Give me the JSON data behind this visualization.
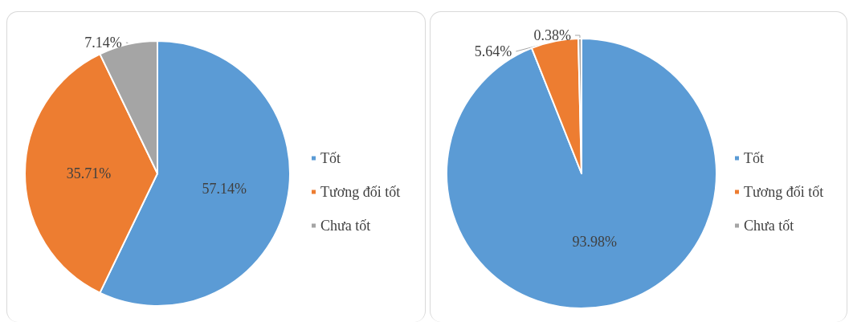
{
  "chart_data": [
    {
      "type": "pie",
      "categories": [
        "Tốt",
        "Tương đối tốt",
        "Chưa tốt"
      ],
      "values": [
        57.14,
        35.71,
        7.14
      ],
      "colors": [
        "#5b9bd5",
        "#ed7d31",
        "#a5a5a5"
      ],
      "value_labels": [
        "57.14%",
        "35.71%",
        "7.14%"
      ],
      "legend": "right"
    },
    {
      "type": "pie",
      "categories": [
        "Tốt",
        "Tương đối tốt",
        "Chưa tốt"
      ],
      "values": [
        93.98,
        5.64,
        0.38
      ],
      "colors": [
        "#5b9bd5",
        "#ed7d31",
        "#a5a5a5"
      ],
      "value_labels": [
        "93.98%",
        "5.64%",
        "0.38%"
      ],
      "legend": "right"
    }
  ]
}
